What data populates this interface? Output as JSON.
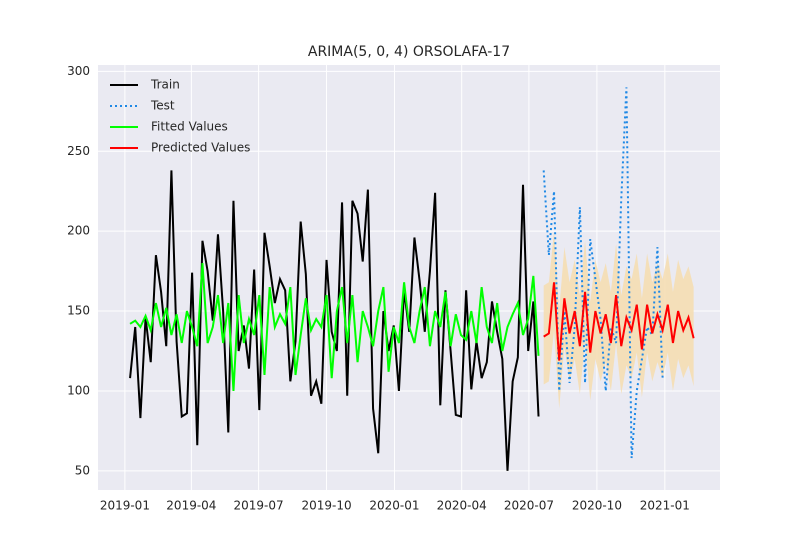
{
  "chart_data": {
    "type": "line",
    "title": "ARIMA(5, 0, 4) ORSOLAFA-17",
    "xlim": [
      -5.2,
      115.1
    ],
    "ylim": [
      38,
      304
    ],
    "xticks": [
      {
        "value": 0,
        "label": "2019-01"
      },
      {
        "value": 12.86,
        "label": "2019-04"
      },
      {
        "value": 25.86,
        "label": "2019-07"
      },
      {
        "value": 39,
        "label": "2019-10"
      },
      {
        "value": 52.14,
        "label": "2020-01"
      },
      {
        "value": 65.14,
        "label": "2020-04"
      },
      {
        "value": 78.14,
        "label": "2020-07"
      },
      {
        "value": 91.29,
        "label": "2020-10"
      },
      {
        "value": 104.43,
        "label": "2021-01"
      }
    ],
    "yticks": [
      50,
      100,
      150,
      200,
      250,
      300
    ],
    "grid": true,
    "legend": "upper-left",
    "series": [
      {
        "name": "Train",
        "color": "#000000",
        "dash": "solid",
        "x": [
          1,
          2,
          3,
          4,
          5,
          6,
          7,
          8,
          9,
          10,
          11,
          12,
          13,
          14,
          15,
          16,
          17,
          18,
          19,
          20,
          21,
          22,
          23,
          24,
          25,
          26,
          27,
          28,
          29,
          30,
          31,
          32,
          33,
          34,
          35,
          36,
          37,
          38,
          39,
          40,
          41,
          42,
          43,
          44,
          45,
          46,
          47,
          48,
          49,
          50,
          51,
          52,
          53,
          54,
          55,
          56,
          57,
          58,
          59,
          60,
          61,
          62,
          63,
          64,
          65,
          66,
          67,
          68,
          69,
          70,
          71,
          72,
          73,
          74,
          75,
          76,
          77,
          78,
          79,
          80
        ],
        "values": [
          108,
          140,
          83,
          146,
          118,
          185,
          162,
          128,
          238,
          131,
          84,
          86,
          174,
          66,
          194,
          175,
          144,
          198,
          150,
          74,
          219,
          125,
          141,
          114,
          176,
          88,
          199,
          178,
          155,
          170,
          163,
          106,
          131,
          206,
          173,
          97,
          106,
          92,
          182,
          137,
          125,
          218,
          97,
          219,
          211,
          181,
          226,
          89,
          61,
          150,
          125,
          141,
          100,
          163,
          137,
          196,
          169,
          137,
          175,
          224,
          91,
          163,
          125,
          85,
          84,
          163,
          101,
          131,
          108,
          118,
          156,
          137,
          120,
          50,
          106,
          121,
          229,
          125,
          156,
          84
        ]
      },
      {
        "name": "Test",
        "color": "#1e88e5",
        "dash": "dotted",
        "x": [
          81,
          82,
          83,
          84,
          85,
          86,
          87,
          88,
          89,
          90,
          91,
          92,
          93,
          94,
          95,
          96,
          97,
          98,
          99,
          100,
          101,
          102,
          103,
          104
        ],
        "values": [
          238,
          185,
          225,
          100,
          150,
          105,
          140,
          215,
          105,
          195,
          170,
          145,
          100,
          140,
          130,
          220,
          290,
          58,
          100,
          120,
          140,
          135,
          190,
          108
        ]
      },
      {
        "name": "Fitted Values",
        "color": "#00ff00",
        "dash": "solid",
        "x": [
          1,
          2,
          3,
          4,
          5,
          6,
          7,
          8,
          9,
          10,
          11,
          12,
          13,
          14,
          15,
          16,
          17,
          18,
          19,
          20,
          21,
          22,
          23,
          24,
          25,
          26,
          27,
          28,
          29,
          30,
          31,
          32,
          33,
          34,
          35,
          36,
          37,
          38,
          39,
          40,
          41,
          42,
          43,
          44,
          45,
          46,
          47,
          48,
          49,
          50,
          51,
          52,
          53,
          54,
          55,
          56,
          57,
          58,
          59,
          60,
          61,
          62,
          63,
          64,
          65,
          66,
          67,
          68,
          69,
          70,
          71,
          72,
          73,
          74,
          75,
          76,
          77,
          78,
          79,
          80
        ],
        "values": [
          142,
          144,
          140,
          147,
          138,
          155,
          140,
          152,
          135,
          148,
          130,
          150,
          140,
          128,
          180,
          130,
          140,
          160,
          130,
          155,
          100,
          160,
          130,
          145,
          135,
          160,
          110,
          165,
          140,
          148,
          142,
          165,
          110,
          135,
          158,
          138,
          145,
          140,
          160,
          108,
          150,
          165,
          130,
          160,
          118,
          150,
          140,
          128,
          150,
          165,
          112,
          140,
          130,
          168,
          140,
          130,
          150,
          165,
          128,
          150,
          140,
          162,
          128,
          148,
          135,
          132,
          150,
          130,
          165,
          140,
          130,
          155,
          125,
          140,
          148,
          155,
          135,
          145,
          172,
          122
        ]
      },
      {
        "name": "Predicted Values",
        "color": "#ff0000",
        "dash": "solid",
        "x": [
          81,
          82,
          83,
          84,
          85,
          86,
          87,
          88,
          89,
          90,
          91,
          92,
          93,
          94,
          95,
          96,
          97,
          98,
          99,
          100,
          101,
          102,
          103,
          104,
          105,
          106,
          107,
          108,
          109,
          110
        ],
        "values": [
          134,
          136,
          168,
          119,
          158,
          136,
          150,
          128,
          162,
          124,
          150,
          136,
          148,
          130,
          160,
          128,
          146,
          138,
          154,
          126,
          154,
          136,
          148,
          138,
          154,
          130,
          150,
          138,
          146,
          133
        ]
      }
    ],
    "confidence_interval": {
      "color": "#f5deb3",
      "x": [
        81,
        82,
        83,
        84,
        85,
        86,
        87,
        88,
        89,
        90,
        91,
        92,
        93,
        94,
        95,
        96,
        97,
        98,
        99,
        100,
        101,
        102,
        103,
        104,
        105,
        106,
        107,
        108,
        109,
        110
      ],
      "lower": [
        104,
        106,
        138,
        89,
        128,
        106,
        120,
        98,
        132,
        94,
        120,
        106,
        118,
        100,
        130,
        98,
        116,
        108,
        124,
        96,
        124,
        106,
        118,
        108,
        124,
        100,
        120,
        108,
        116,
        103
      ],
      "upper": [
        166,
        168,
        200,
        151,
        190,
        168,
        182,
        160,
        194,
        156,
        182,
        168,
        180,
        162,
        192,
        160,
        178,
        170,
        186,
        158,
        186,
        168,
        180,
        170,
        186,
        162,
        182,
        170,
        178,
        165
      ]
    }
  }
}
